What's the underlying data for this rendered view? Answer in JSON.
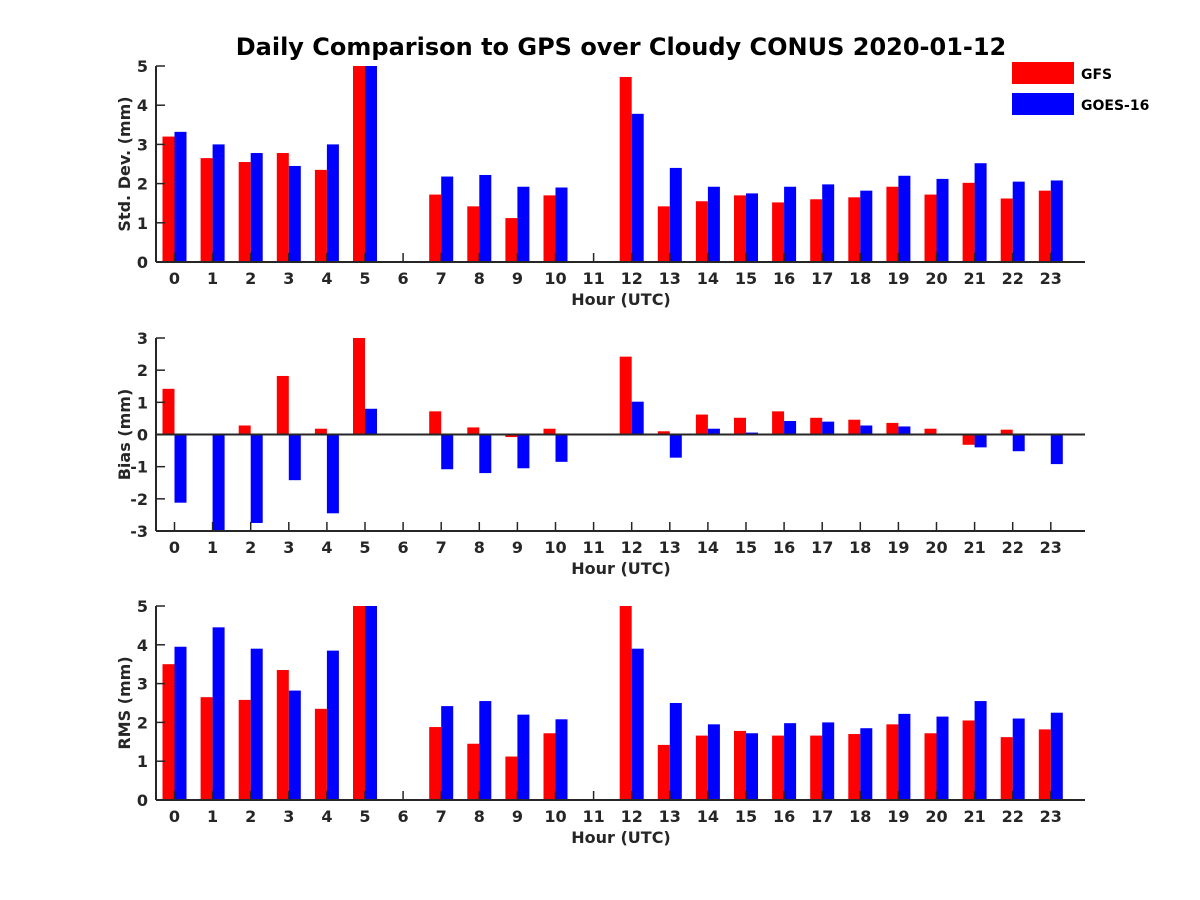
{
  "title": "Daily Comparison to GPS over Cloudy CONUS 2020-01-12",
  "legend": [
    {
      "name": "GFS",
      "color": "#ff0000"
    },
    {
      "name": "GOES-16",
      "color": "#0000ff"
    }
  ],
  "chart_data": [
    {
      "type": "bar",
      "ylabel": "Std. Dev. (mm)",
      "xlabel": "Hour (UTC)",
      "ylim": [
        0,
        5
      ],
      "yticks": [
        0,
        1,
        2,
        3,
        4,
        5
      ],
      "categories": [
        0,
        1,
        2,
        3,
        4,
        5,
        6,
        7,
        8,
        9,
        10,
        11,
        12,
        13,
        14,
        15,
        16,
        17,
        18,
        19,
        20,
        21,
        22,
        23
      ],
      "series": [
        {
          "name": "GFS",
          "values": [
            3.2,
            2.65,
            2.55,
            2.78,
            2.35,
            5.0,
            null,
            1.72,
            1.42,
            1.12,
            1.7,
            null,
            4.72,
            1.42,
            1.55,
            1.7,
            1.52,
            1.6,
            1.65,
            1.92,
            1.72,
            2.02,
            1.62,
            1.82
          ]
        },
        {
          "name": "GOES-16",
          "values": [
            3.32,
            3.0,
            2.78,
            2.45,
            3.0,
            5.0,
            null,
            2.18,
            2.22,
            1.92,
            1.9,
            null,
            3.78,
            2.4,
            1.92,
            1.75,
            1.92,
            1.98,
            1.82,
            2.2,
            2.12,
            2.52,
            2.05,
            2.08
          ]
        }
      ]
    },
    {
      "type": "bar",
      "ylabel": "Bias (mm)",
      "xlabel": "Hour (UTC)",
      "ylim": [
        -3,
        3
      ],
      "yticks": [
        -3,
        -2,
        -1,
        0,
        1,
        2,
        3
      ],
      "categories": [
        0,
        1,
        2,
        3,
        4,
        5,
        6,
        7,
        8,
        9,
        10,
        11,
        12,
        13,
        14,
        15,
        16,
        17,
        18,
        19,
        20,
        21,
        22,
        23
      ],
      "series": [
        {
          "name": "GFS",
          "values": [
            1.42,
            0.03,
            0.28,
            1.82,
            0.18,
            3.0,
            null,
            0.72,
            0.22,
            -0.08,
            0.18,
            null,
            2.42,
            0.1,
            0.62,
            0.52,
            0.72,
            0.52,
            0.46,
            0.36,
            0.18,
            -0.32,
            0.15,
            0.0
          ]
        },
        {
          "name": "GOES-16",
          "values": [
            -2.12,
            -3.0,
            -2.75,
            -1.42,
            -2.45,
            0.8,
            null,
            -1.08,
            -1.2,
            -1.05,
            -0.85,
            null,
            1.02,
            -0.72,
            0.18,
            0.06,
            0.42,
            0.4,
            0.28,
            0.25,
            0.0,
            -0.4,
            -0.52,
            -0.92
          ]
        }
      ]
    },
    {
      "type": "bar",
      "ylabel": "RMS (mm)",
      "xlabel": "Hour (UTC)",
      "ylim": [
        0,
        5
      ],
      "yticks": [
        0,
        1,
        2,
        3,
        4,
        5
      ],
      "categories": [
        0,
        1,
        2,
        3,
        4,
        5,
        6,
        7,
        8,
        9,
        10,
        11,
        12,
        13,
        14,
        15,
        16,
        17,
        18,
        19,
        20,
        21,
        22,
        23
      ],
      "series": [
        {
          "name": "GFS",
          "values": [
            3.5,
            2.65,
            2.58,
            3.35,
            2.35,
            5.0,
            null,
            1.88,
            1.45,
            1.12,
            1.72,
            null,
            5.0,
            1.42,
            1.66,
            1.78,
            1.66,
            1.66,
            1.7,
            1.95,
            1.72,
            2.05,
            1.62,
            1.82
          ]
        },
        {
          "name": "GOES-16",
          "values": [
            3.95,
            4.45,
            3.9,
            2.82,
            3.85,
            5.0,
            null,
            2.42,
            2.55,
            2.2,
            2.08,
            null,
            3.9,
            2.5,
            1.95,
            1.72,
            1.98,
            2.0,
            1.85,
            2.22,
            2.15,
            2.55,
            2.1,
            2.25
          ]
        }
      ]
    }
  ]
}
